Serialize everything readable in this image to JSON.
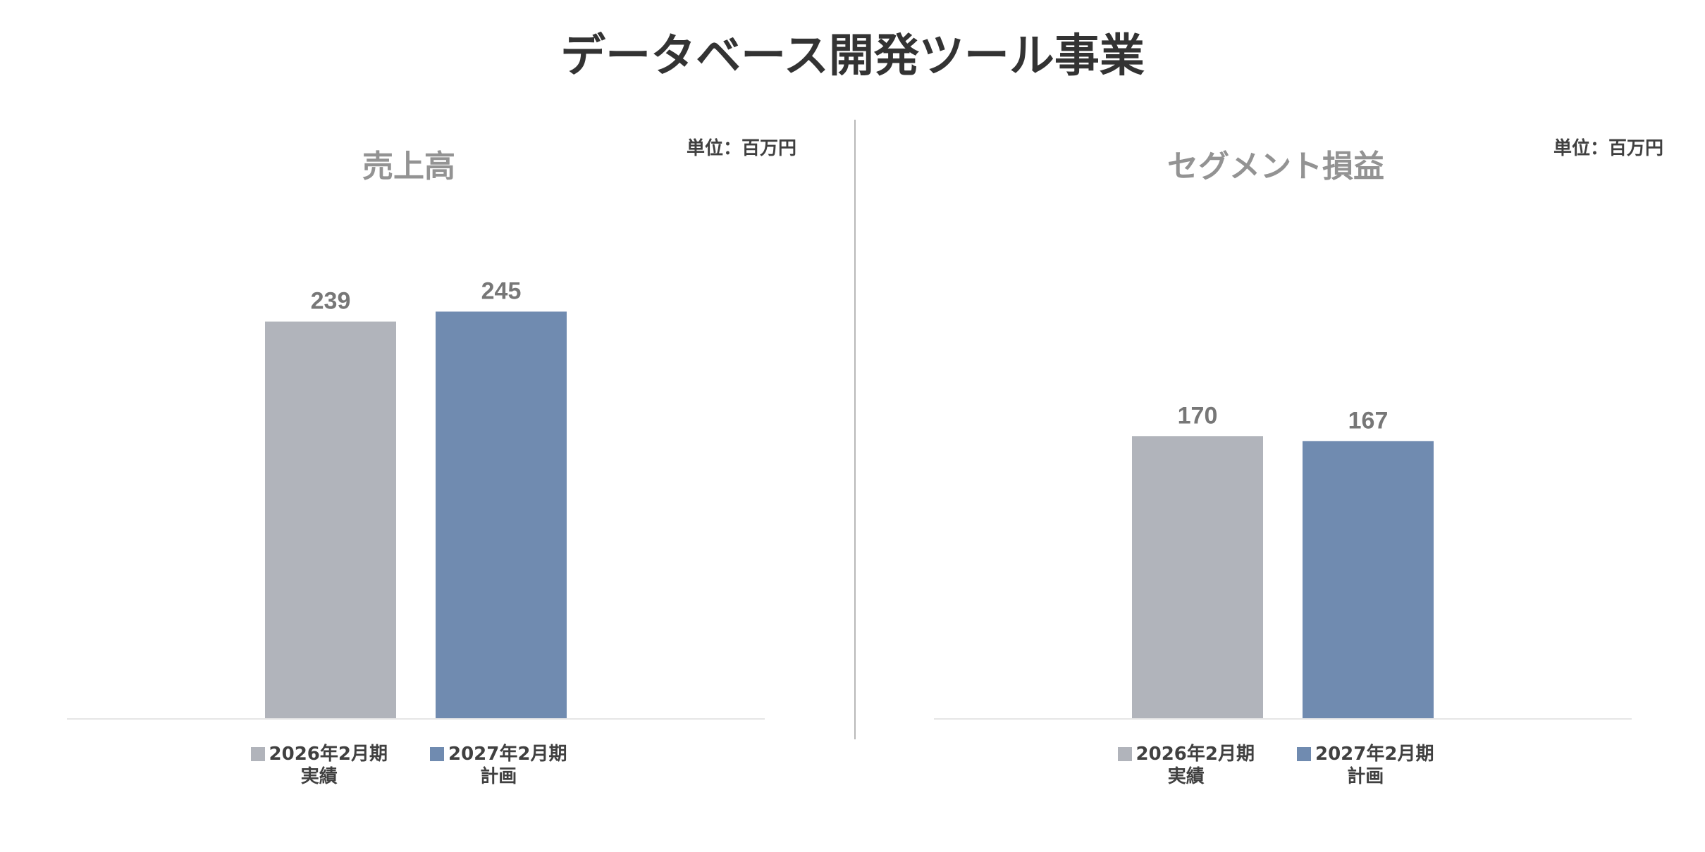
{
  "page_title": "データベース開発ツール事業",
  "colors": {
    "actual": "#b1b4bb",
    "plan": "#708bb0",
    "axis": "#e6e6e6",
    "value_label": "#777777"
  },
  "chart_data": [
    {
      "type": "bar",
      "title": "売上高",
      "unit": "単位：百万円",
      "categories": [
        "2026年2月期 実績",
        "2027年2月期 計画"
      ],
      "values": [
        239,
        245
      ],
      "ylim": [
        0,
        300
      ],
      "grid": false,
      "legend_position": "bottom"
    },
    {
      "type": "bar",
      "title": "セグメント損益",
      "unit": "単位：百万円",
      "categories": [
        "2026年2月期 実績",
        "2027年2月期 計画"
      ],
      "values": [
        170,
        167
      ],
      "ylim": [
        0,
        300
      ],
      "grid": false,
      "legend_position": "bottom"
    }
  ],
  "legend": [
    {
      "label": "2026年2月期",
      "sub": "実績"
    },
    {
      "label": "2027年2月期",
      "sub": "計画"
    }
  ]
}
